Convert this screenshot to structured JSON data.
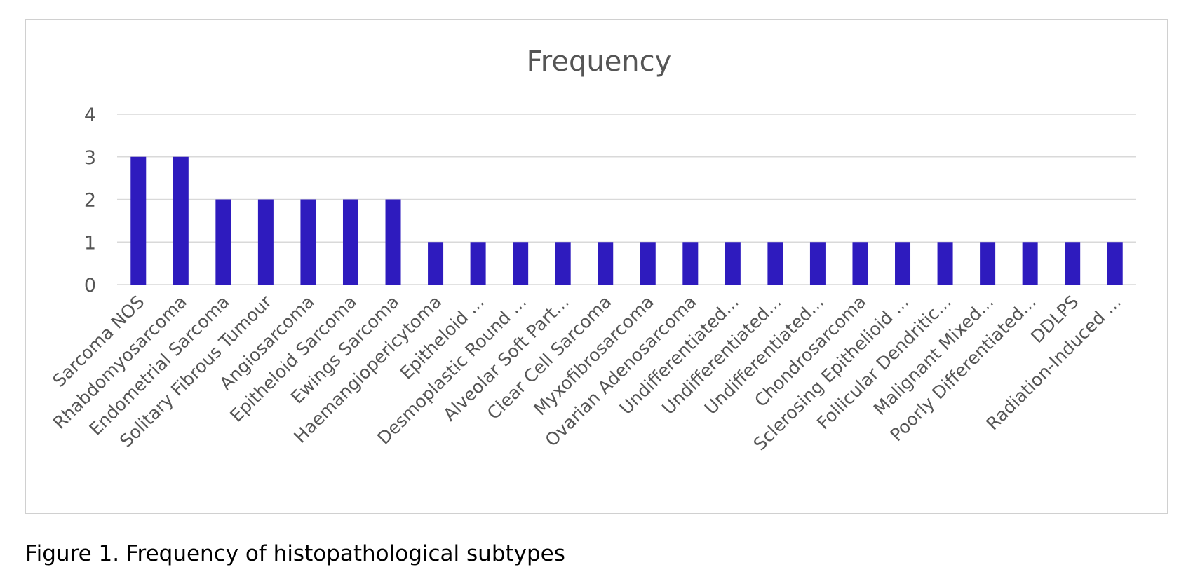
{
  "caption": "Figure 1. Frequency of histopathological subtypes",
  "colors": {
    "bar": "#2E1BBE",
    "gridline": "#d9d9d9",
    "text": "#555555"
  },
  "chart_data": {
    "type": "bar",
    "title": "Frequency",
    "xlabel": "",
    "ylabel": "",
    "ylim": [
      0,
      4
    ],
    "yticks": [
      0,
      1,
      2,
      3,
      4
    ],
    "grid": true,
    "legend": "none",
    "categories": [
      "Sarcoma NOS",
      "Rhabdomyosarcoma",
      "Endometrial Sarcoma",
      "Solitary Fibrous Tumour",
      "Angiosarcoma",
      "Epitheloid Sarcoma",
      "Ewings Sarcoma",
      "Haemangiopericytoma",
      "Epitheloid ...",
      "Desmoplastic Round ...",
      "Alveolar Soft Part...",
      "Clear Cell Sarcoma",
      "Myxofibrosarcoma",
      "Ovarian Adenosarcoma",
      "Undifferentiated...",
      "Undifferentiated...",
      "Undifferentiated...",
      "Chondrosarcoma",
      "Sclerosing Epithelioid ...",
      "Follicular Dendritic...",
      "Malignant Mixed...",
      "Poorly Differentiated...",
      "DDLPS",
      "Radiation-Induced ..."
    ],
    "values": [
      3,
      3,
      2,
      2,
      2,
      2,
      2,
      1,
      1,
      1,
      1,
      1,
      1,
      1,
      1,
      1,
      1,
      1,
      1,
      1,
      1,
      1,
      1,
      1
    ]
  }
}
